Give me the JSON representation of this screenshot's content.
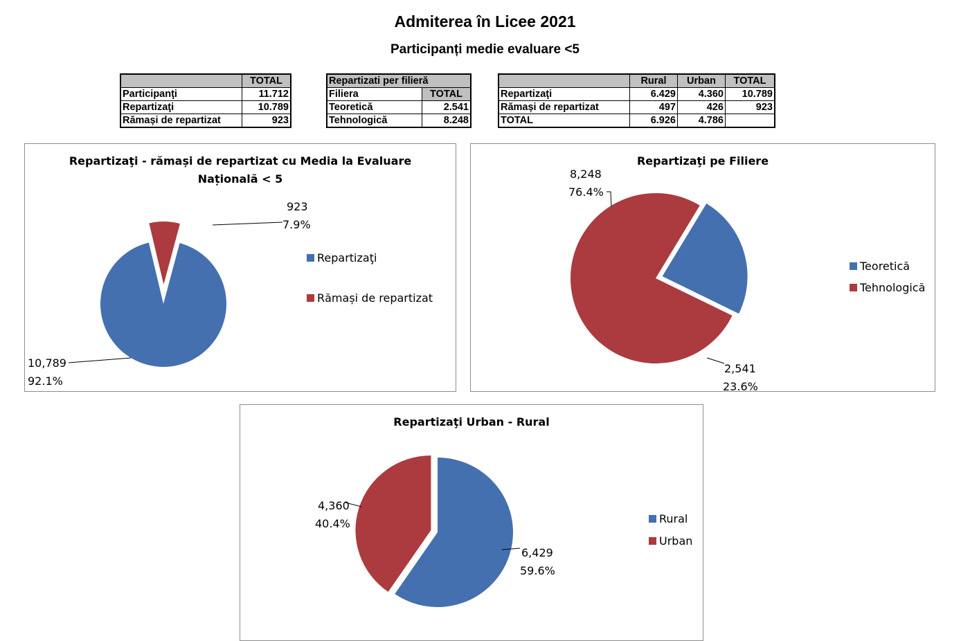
{
  "header": {
    "title": "Admiterea în Licee 2021",
    "subtitle": "Participanți medie evaluare <5"
  },
  "tables": {
    "totals": {
      "header": [
        "",
        "TOTAL"
      ],
      "rows": [
        {
          "label": "Participanţi",
          "total": "11.712"
        },
        {
          "label": "Repartizaţi",
          "total": "10.789"
        },
        {
          "label": "Rămași de repartizat",
          "total": "923"
        }
      ]
    },
    "filiere": {
      "caption": "Repartizati per filieră",
      "header": [
        "Filiera",
        "TOTAL"
      ],
      "rows": [
        {
          "label": "Teoretică",
          "total": "2.541"
        },
        {
          "label": "Tehnologică",
          "total": "8.248"
        }
      ]
    },
    "mediu": {
      "header": [
        "",
        "Rural",
        "Urban",
        "TOTAL"
      ],
      "rows": [
        {
          "label": "Repartizaţi",
          "rural": "6.429",
          "urban": "4.360",
          "total": "10.789"
        },
        {
          "label": "Rămași de repartizat",
          "rural": "497",
          "urban": "426",
          "total": "923"
        },
        {
          "label": "TOTAL",
          "rural": "6.926",
          "urban": "4.786",
          "total": ""
        }
      ]
    }
  },
  "colors": {
    "blue": "#4470b0",
    "red": "#ab3b3f"
  },
  "chart_data": [
    {
      "type": "pie",
      "title_lines": [
        "Repartizaţi - rămași de repartizat cu Media la Evaluare",
        "Națională < 5"
      ],
      "categories": [
        "Repartizaţi",
        "Rămași de repartizat"
      ],
      "values": [
        10789,
        923
      ],
      "value_labels": [
        "10,789",
        "923"
      ],
      "percent_labels": [
        "92.1%",
        "7.9%"
      ],
      "colors": [
        "#4470b0",
        "#ab3b3f"
      ],
      "exploded": [
        "Rămași de repartizat"
      ],
      "legend": "right"
    },
    {
      "type": "pie",
      "title_lines": [
        "Repartizaţi pe Filiere"
      ],
      "categories": [
        "Teoretică",
        "Tehnologică"
      ],
      "values": [
        2541,
        8248
      ],
      "value_labels": [
        "2,541",
        "8,248"
      ],
      "percent_labels": [
        "23.6%",
        "76.4%"
      ],
      "colors": [
        "#4470b0",
        "#ab3b3f"
      ],
      "exploded": [
        "Teoretică"
      ],
      "legend": "right"
    },
    {
      "type": "pie",
      "title_lines": [
        "Repartizaţi Urban - Rural"
      ],
      "categories": [
        "Rural",
        "Urban"
      ],
      "values": [
        6429,
        4360
      ],
      "value_labels": [
        "6,429",
        "4,360"
      ],
      "percent_labels": [
        "59.6%",
        "40.4%"
      ],
      "colors": [
        "#4470b0",
        "#ab3b3f"
      ],
      "exploded": [
        "Urban"
      ],
      "legend": "right"
    }
  ]
}
